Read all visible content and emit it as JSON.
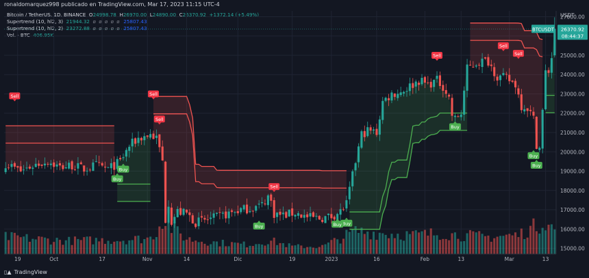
{
  "header": {
    "publisher": "ronaldomarquez998 publicado en TradingView.com, Mar 17, 2023 11:15 UTC-4"
  },
  "legend": {
    "symbol": "Bitcoin / TetherUS, 1D, BINANCE",
    "ohlc": {
      "o_label": "O",
      "o": "24998.78",
      "h_label": "H",
      "h": "26970.00",
      "l_label": "L",
      "l": "24890.00",
      "c_label": "C",
      "c": "26370.92",
      "change": "+1372.14 (+5.49%)"
    },
    "st1": {
      "label": "Supertrend (10, hl2, 3)",
      "v1": "21944.32",
      "dots": "ø ø ø ø ø",
      "v2": "25807.43"
    },
    "st2": {
      "label": "Supertrend (10, hl2, 2)",
      "v1": "23272.88",
      "dots": "ø ø ø ø ø",
      "v2": "25807.43"
    },
    "vol": {
      "label": "Vol. · BTC",
      "value": "406.95K"
    }
  },
  "price_axis": {
    "currency": "USDT",
    "last_tag": "BTCUSDT",
    "last_price": "26370.92",
    "countdown": "08:44:37"
  },
  "branding": {
    "name": "TradingView"
  },
  "colors": {
    "up": "#26a69a",
    "down": "#ef5350",
    "buy": "#4caf50",
    "sell": "#f23645",
    "bg": "#131722",
    "grid": "#1f2433"
  },
  "chart_data": {
    "type": "candlestick",
    "title": "Bitcoin / TetherUS, 1D, BINANCE",
    "ylim": [
      14700,
      27300
    ],
    "y_ticks": [
      15000,
      16000,
      17000,
      18000,
      19000,
      20000,
      21000,
      22000,
      23000,
      24000,
      25000,
      26000,
      27000
    ],
    "y_tick_labels": [
      "15000.00",
      "16000.00",
      "17000.00",
      "18000.00",
      "19000.00",
      "20000.00",
      "21000.00",
      "22000.00",
      "23000.00",
      "24000.00",
      "25000.00",
      "26000.00",
      "27000.00"
    ],
    "x_ticks": [
      {
        "label": "19",
        "day": 4
      },
      {
        "label": "Oct",
        "day": 16
      },
      {
        "label": "17",
        "day": 32
      },
      {
        "label": "Nov",
        "day": 47
      },
      {
        "label": "14",
        "day": 60
      },
      {
        "label": "Dic",
        "day": 77
      },
      {
        "label": "19",
        "day": 95
      },
      {
        "label": "2023",
        "day": 108
      },
      {
        "label": "16",
        "day": 123
      },
      {
        "label": "Feb",
        "day": 139
      },
      {
        "label": "13",
        "day": 151
      },
      {
        "label": "Mar",
        "day": 167
      },
      {
        "label": "13",
        "day": 179
      }
    ],
    "close_anchors": [
      [
        0,
        19400
      ],
      [
        5,
        19000
      ],
      [
        10,
        19350
      ],
      [
        14,
        19500
      ],
      [
        18,
        19200
      ],
      [
        22,
        19300
      ],
      [
        26,
        19100
      ],
      [
        30,
        19300
      ],
      [
        34,
        19100
      ],
      [
        38,
        19500
      ],
      [
        41,
        20300
      ],
      [
        44,
        20700
      ],
      [
        48,
        20900
      ],
      [
        50,
        20700
      ],
      [
        51,
        20150
      ],
      [
        52,
        19500
      ],
      [
        53,
        16500
      ],
      [
        54,
        17400
      ],
      [
        55,
        16400
      ],
      [
        57,
        16900
      ],
      [
        60,
        16800
      ],
      [
        63,
        16350
      ],
      [
        66,
        16450
      ],
      [
        70,
        16600
      ],
      [
        74,
        16800
      ],
      [
        78,
        17000
      ],
      [
        82,
        17100
      ],
      [
        85,
        17250
      ],
      [
        87,
        17700
      ],
      [
        88,
        17400
      ],
      [
        89,
        16800
      ],
      [
        92,
        16700
      ],
      [
        96,
        16850
      ],
      [
        100,
        16600
      ],
      [
        104,
        16550
      ],
      [
        108,
        16650
      ],
      [
        111,
        16900
      ],
      [
        113,
        17300
      ],
      [
        114,
        18000
      ],
      [
        116,
        19500
      ],
      [
        118,
        20900
      ],
      [
        120,
        21100
      ],
      [
        123,
        21000
      ],
      [
        125,
        22600
      ],
      [
        128,
        23000
      ],
      [
        131,
        23100
      ],
      [
        134,
        23400
      ],
      [
        137,
        23700
      ],
      [
        140,
        23500
      ],
      [
        143,
        23700
      ],
      [
        145,
        23400
      ],
      [
        147,
        22800
      ],
      [
        148,
        21900
      ],
      [
        149,
        21700
      ],
      [
        151,
        22000
      ],
      [
        153,
        24300
      ],
      [
        156,
        24600
      ],
      [
        158,
        24700
      ],
      [
        160,
        24700
      ],
      [
        163,
        23900
      ],
      [
        166,
        23800
      ],
      [
        169,
        23500
      ],
      [
        171,
        22400
      ],
      [
        173,
        22300
      ],
      [
        175,
        21700
      ],
      [
        176,
        20400
      ],
      [
        177,
        20200
      ],
      [
        178,
        22100
      ],
      [
        179,
        24100
      ],
      [
        180,
        24200
      ],
      [
        181,
        24900
      ],
      [
        182,
        26370
      ]
    ],
    "volume_anchors": [
      [
        0,
        0.45
      ],
      [
        20,
        0.35
      ],
      [
        40,
        0.38
      ],
      [
        48,
        0.42
      ],
      [
        50,
        0.6
      ],
      [
        52,
        0.95
      ],
      [
        55,
        0.7
      ],
      [
        60,
        0.4
      ],
      [
        70,
        0.3
      ],
      [
        80,
        0.25
      ],
      [
        88,
        0.35
      ],
      [
        95,
        0.2
      ],
      [
        105,
        0.2
      ],
      [
        112,
        0.45
      ],
      [
        116,
        0.6
      ],
      [
        125,
        0.55
      ],
      [
        135,
        0.5
      ],
      [
        145,
        0.55
      ],
      [
        150,
        0.5
      ],
      [
        160,
        0.45
      ],
      [
        170,
        0.5
      ],
      [
        176,
        0.75
      ],
      [
        179,
        0.9
      ],
      [
        182,
        0.6
      ]
    ],
    "supertrend_3": {
      "name": "Supertrend (10, hl2, 3)",
      "down_start": 0,
      "down_end": 36,
      "up_start": 37,
      "up_end": 48,
      "down2_start": 49,
      "down2_end": 113,
      "up2_start": 114,
      "up2_end": 153,
      "down3_start": 154,
      "down3_end": 178,
      "up3_start": 179,
      "up3_end": 182
    },
    "signals": [
      {
        "label": "Sell",
        "day": 3,
        "price": 22900
      },
      {
        "label": "Buy",
        "day": 37,
        "price": 18600
      },
      {
        "label": "Buy",
        "day": 39,
        "price": 19100
      },
      {
        "label": "Sell",
        "day": 49,
        "price": 23000
      },
      {
        "label": "Sell",
        "day": 51,
        "price": 21700
      },
      {
        "label": "Sell",
        "day": 89,
        "price": 18200
      },
      {
        "label": "Buy",
        "day": 84,
        "price": 16150
      },
      {
        "label": "Buy",
        "day": 113,
        "price": 16300
      },
      {
        "label": "Buy",
        "day": 110,
        "price": 16250
      },
      {
        "label": "Buy",
        "day": 149,
        "price": 21300
      },
      {
        "label": "Sell",
        "day": 143,
        "price": 25000
      },
      {
        "label": "Sell",
        "day": 165,
        "price": 25500
      },
      {
        "label": "Sell",
        "day": 170,
        "price": 25100
      },
      {
        "label": "Buy",
        "day": 176,
        "price": 19300
      },
      {
        "label": "Buy",
        "day": 175,
        "price": 19800
      }
    ]
  }
}
